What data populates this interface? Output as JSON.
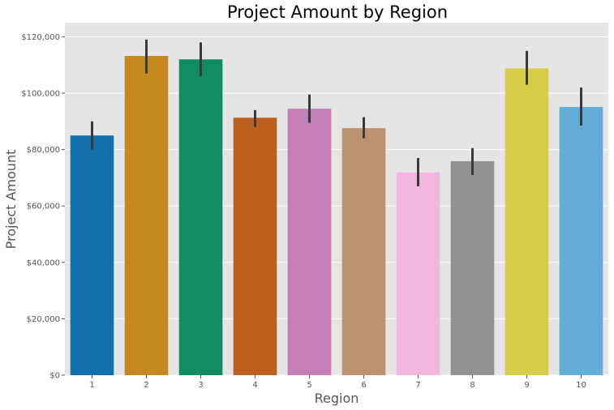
{
  "chart_data": {
    "type": "bar",
    "title": "Project Amount by Region",
    "xlabel": "Region",
    "ylabel": "Project Amount",
    "categories": [
      "1",
      "2",
      "3",
      "4",
      "5",
      "6",
      "7",
      "8",
      "9",
      "10"
    ],
    "values": [
      85000,
      113200,
      112000,
      91300,
      94500,
      87600,
      71900,
      75900,
      108800,
      95100
    ],
    "error_low": [
      80000,
      107000,
      106000,
      88000,
      89500,
      84000,
      67000,
      71000,
      103000,
      88500
    ],
    "error_high": [
      90000,
      119000,
      118000,
      94000,
      99500,
      91500,
      77000,
      80500,
      115000,
      102000
    ],
    "colors": [
      "#1170aa",
      "#c4881f",
      "#0f8c63",
      "#bb5f1d",
      "#c480b6",
      "#bc9270",
      "#f2b6de",
      "#929292",
      "#d6cc45",
      "#63aed8"
    ],
    "ylim": [
      0,
      125000
    ],
    "yticks": [
      0,
      20000,
      40000,
      60000,
      80000,
      100000,
      120000
    ],
    "ytick_labels": [
      "$0",
      "$20,000",
      "$40,000",
      "$60,000",
      "$80,000",
      "$100,000",
      "$120,000"
    ],
    "grid": true,
    "background": "#e5e5e5",
    "errorbar_color": "#3a3a3a"
  }
}
